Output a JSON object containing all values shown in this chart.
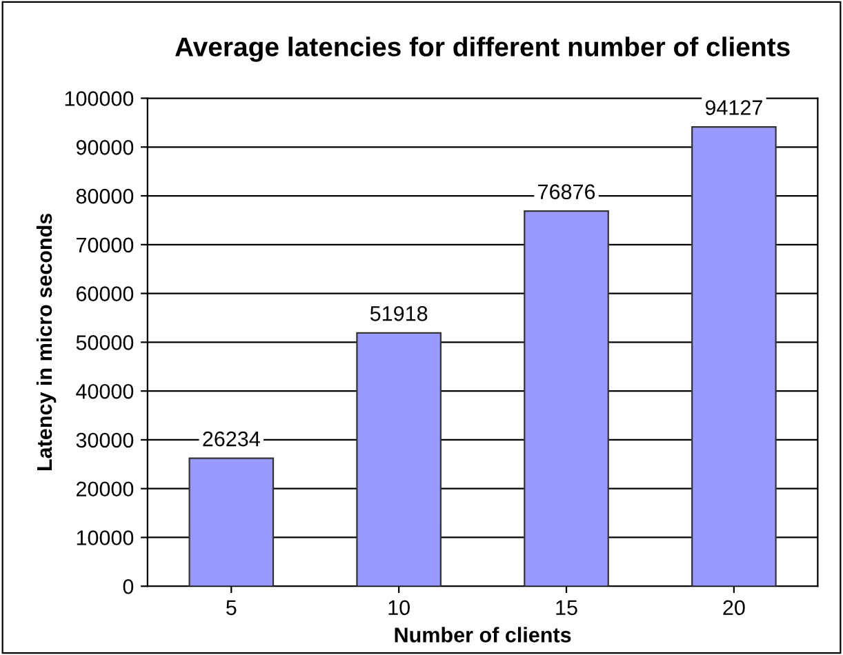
{
  "chart_data": {
    "type": "bar",
    "title": "Average latencies for different number of clients",
    "xlabel": "Number of clients",
    "ylabel": "Latency in micro seconds",
    "categories": [
      "5",
      "10",
      "15",
      "20"
    ],
    "values": [
      26234,
      51918,
      76876,
      94127
    ],
    "color": "#9999ff",
    "ylim": [
      0,
      100000
    ],
    "yticks": [
      0,
      10000,
      20000,
      30000,
      40000,
      50000,
      60000,
      70000,
      80000,
      90000,
      100000
    ],
    "grid": "y",
    "data_labels": true
  }
}
